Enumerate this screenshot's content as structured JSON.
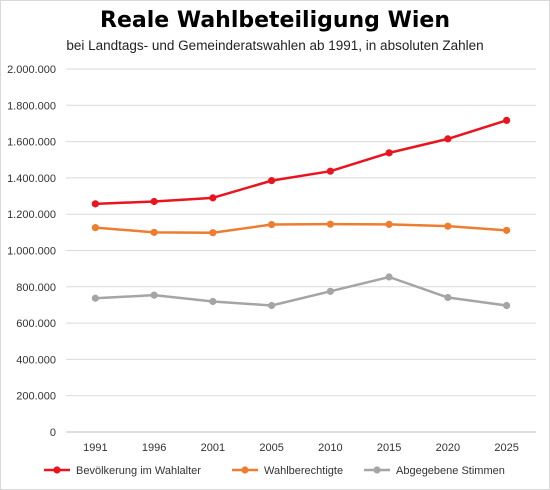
{
  "chart_data": {
    "type": "line",
    "title": "Reale Wahlbeteiligung Wien",
    "subtitle": "bei Landtags- und Gemeinderatswahlen ab 1991, in absoluten Zahlen",
    "xlabel": "",
    "ylabel": "",
    "categories": [
      "1991",
      "1996",
      "2001",
      "2005",
      "2010",
      "2015",
      "2020",
      "2025"
    ],
    "ylim": [
      0,
      2000000
    ],
    "yticks": [
      0,
      200000,
      400000,
      600000,
      800000,
      1000000,
      1200000,
      1400000,
      1600000,
      1800000,
      2000000
    ],
    "ytick_labels": [
      "0",
      "200.000",
      "400.000",
      "600.000",
      "800.000",
      "1.000.000",
      "1.200.000",
      "1.400.000",
      "1.600.000",
      "1.800.000",
      "2.000.000"
    ],
    "grid": true,
    "legend_position": "bottom",
    "series": [
      {
        "name": "Bevölkerung im Wahlalter",
        "color": "#e8141e",
        "values": [
          1257000,
          1270000,
          1290000,
          1385000,
          1437000,
          1538000,
          1615000,
          1717000
        ]
      },
      {
        "name": "Wahlberechtigte",
        "color": "#ed7d31",
        "values": [
          1126000,
          1100000,
          1098000,
          1143000,
          1145000,
          1144000,
          1134000,
          1111000
        ]
      },
      {
        "name": "Abgegebene Stimmen",
        "color": "#a5a5a5",
        "values": [
          737000,
          754000,
          719000,
          697000,
          775000,
          854000,
          741000,
          697000
        ]
      }
    ]
  }
}
